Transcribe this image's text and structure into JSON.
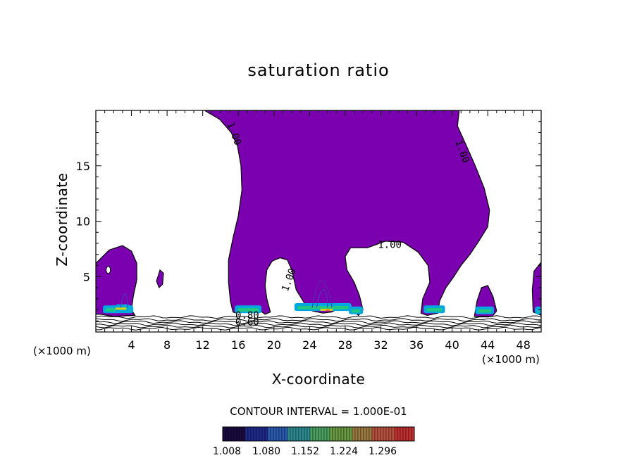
{
  "chart_data": {
    "type": "contour",
    "title": "saturation ratio",
    "xlabel": "X-coordinate",
    "ylabel": "Z-coordinate",
    "x_unit_label": "(×1000 m)",
    "xlim": [
      0,
      50
    ],
    "ylim": [
      0,
      20
    ],
    "x_ticks": [
      4,
      8,
      12,
      16,
      20,
      24,
      28,
      32,
      36,
      40,
      44,
      48
    ],
    "y_ticks": [
      5,
      10,
      15
    ],
    "contour_interval_text": "CONTOUR INTERVAL = 1.000E-01",
    "contour_labels": [
      {
        "text": "1.00",
        "x": 15.2,
        "y": 17.8
      },
      {
        "text": "1.00",
        "x": 40.8,
        "y": 16.2
      },
      {
        "text": "1.00",
        "x": 33.0,
        "y": 7.6
      },
      {
        "text": "1.00",
        "x": 22.0,
        "y": 4.6
      },
      {
        "text": "0.80",
        "x": 17.0,
        "y": 1.2
      },
      {
        "text": "0.60",
        "x": 17.0,
        "y": 0.6
      }
    ],
    "colorbar": {
      "ticks": [
        "1.008",
        "1.080",
        "1.152",
        "1.224",
        "1.296"
      ],
      "colors": [
        "#1a0a40",
        "#1e2a8a",
        "#2a5ab0",
        "#2a8a90",
        "#4aa060",
        "#6a9a40",
        "#9a7a40",
        "#b85040",
        "#c03030"
      ]
    },
    "fill_color": "#7a00b0",
    "high_colors": [
      "#00a8e0",
      "#20c880",
      "#d8d020",
      "#e05020"
    ]
  }
}
